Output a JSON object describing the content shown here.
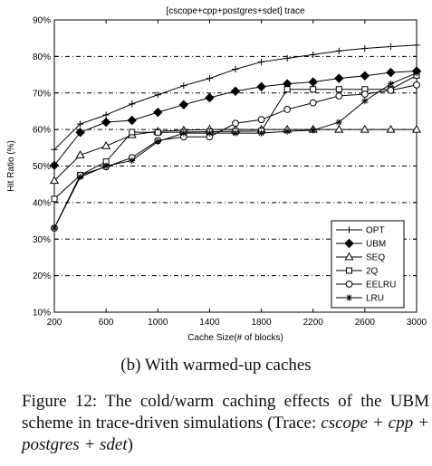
{
  "chart_data": {
    "type": "line",
    "title": "[cscope+cpp+postgres+sdet] trace",
    "xlabel": "Cache Size(# of blocks)",
    "ylabel": "Hit Ratio (%)",
    "xlim": [
      200,
      3000
    ],
    "ylim": [
      10,
      90
    ],
    "x_ticks": [
      "200",
      "600",
      "1000",
      "1400",
      "1800",
      "2200",
      "2600",
      "3000"
    ],
    "y_ticks": [
      "10%",
      "20%",
      "30%",
      "40%",
      "50%",
      "60%",
      "70%",
      "80%",
      "90%"
    ],
    "grid": "dashed horizontal",
    "legend_position": "bottom-right",
    "series": [
      {
        "name": "OPT",
        "marker": "plus",
        "x": [
          200,
          400,
          600,
          800,
          1000,
          1200,
          1400,
          1600,
          1800,
          2000,
          2200,
          2400,
          2600,
          2800,
          3000
        ],
        "y": [
          54.5,
          61.5,
          64,
          67,
          69.5,
          72,
          74,
          76.5,
          78.5,
          79.5,
          80.5,
          81.5,
          82.2,
          82.7,
          83.1
        ]
      },
      {
        "name": "UBM",
        "marker": "diamond",
        "x": [
          200,
          400,
          600,
          800,
          1000,
          1200,
          1400,
          1600,
          1800,
          2000,
          2200,
          2400,
          2600,
          2800,
          3000
        ],
        "y": [
          50.2,
          59.2,
          62,
          62.5,
          64.7,
          66.8,
          68.7,
          70.5,
          71.7,
          72.5,
          73,
          74,
          74.7,
          75.6,
          76
        ]
      },
      {
        "name": "SEQ",
        "marker": "triangle",
        "x": [
          200,
          400,
          600,
          800,
          1000,
          1200,
          1400,
          1600,
          1800,
          2000,
          2200,
          2400,
          2600,
          2800,
          3000
        ],
        "y": [
          46,
          53,
          55.5,
          58.5,
          59.5,
          59.8,
          60,
          60,
          60,
          60,
          60,
          60,
          60,
          60,
          60
        ]
      },
      {
        "name": "2Q",
        "marker": "square",
        "x": [
          200,
          400,
          600,
          800,
          1000,
          1200,
          1400,
          1600,
          1800,
          2000,
          2200,
          2400,
          2600,
          2800,
          3000
        ],
        "y": [
          41,
          47.5,
          51.2,
          59.3,
          59.2,
          59.3,
          59.4,
          59.5,
          59.6,
          71,
          71,
          71,
          71,
          71,
          74.8
        ]
      },
      {
        "name": "EELRU",
        "marker": "circle",
        "x": [
          200,
          400,
          600,
          800,
          1000,
          1200,
          1400,
          1600,
          1800,
          2000,
          2200,
          2400,
          2600,
          2800,
          3000
        ],
        "y": [
          33,
          47.5,
          49.8,
          52.3,
          57,
          58,
          58,
          61.7,
          62.7,
          65.5,
          67.3,
          69.2,
          69.7,
          70.7,
          72.2
        ]
      },
      {
        "name": "LRU",
        "marker": "star",
        "x": [
          200,
          400,
          600,
          800,
          1000,
          1200,
          1400,
          1600,
          1800,
          2000,
          2200,
          2400,
          2600,
          2800,
          3000
        ],
        "y": [
          33,
          47,
          50,
          51.5,
          56.7,
          59,
          59,
          59,
          59,
          59.5,
          59.8,
          62,
          67.8,
          72.5,
          75.5
        ]
      }
    ]
  },
  "subcaption": "(b) With warmed-up caches",
  "caption": {
    "prefix": "Figure 12: The cold/warm caching effects of the UBM scheme in trace-driven simulations (Trace:",
    "math": "cscope + cpp + postgres + sdet",
    "suffix": ")"
  }
}
